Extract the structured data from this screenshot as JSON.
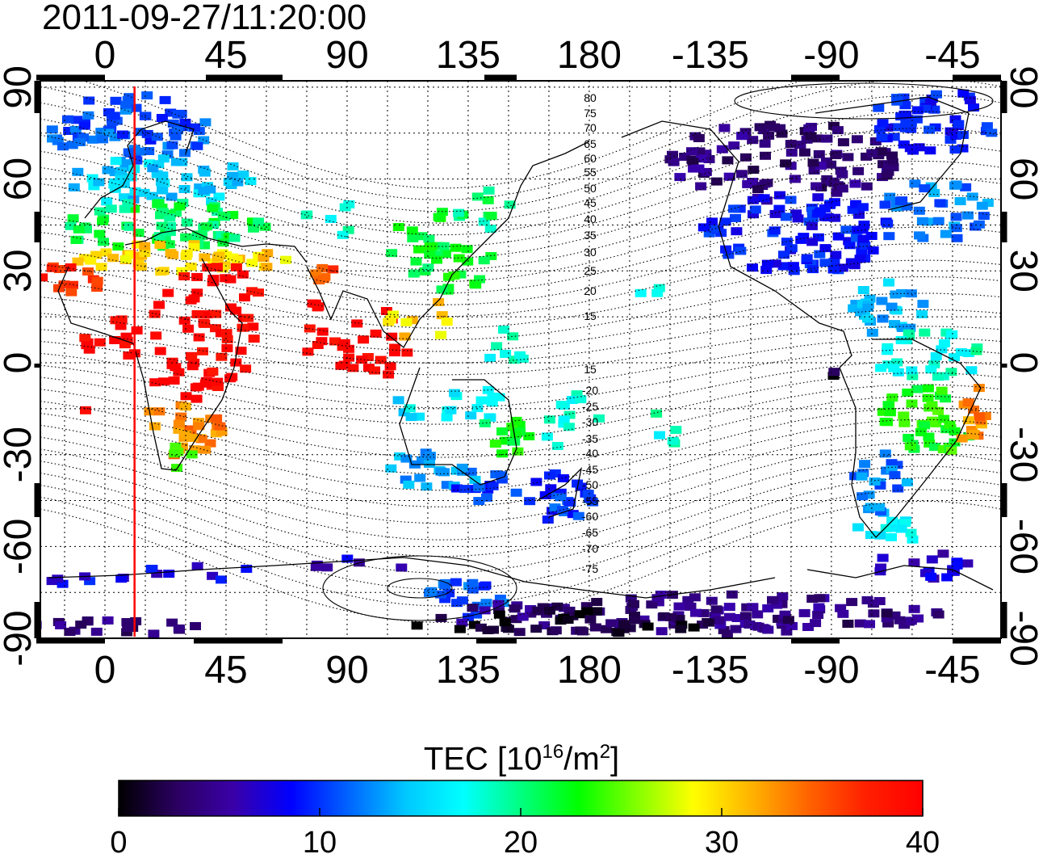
{
  "timestamp": "2011-09-27/11:20:00",
  "lon_ticks": [
    "0",
    "45",
    "90",
    "135",
    "180",
    "-135",
    "-90",
    "-45"
  ],
  "lat_ticks": [
    "90",
    "60",
    "30",
    "0",
    "-30",
    "-60",
    "-90"
  ],
  "contour_labels": [
    "80",
    "75",
    "70",
    "65",
    "60",
    "55",
    "50",
    "45",
    "40",
    "35",
    "30",
    "25",
    "20",
    "15",
    "15",
    "-20",
    "-25",
    "-30",
    "-35",
    "-40",
    "-45",
    "-50",
    "-55",
    "-60",
    "-65",
    "-70",
    "-75"
  ],
  "colorbar": {
    "title_main": "TEC  [10",
    "title_exp1": "16",
    "title_mid": "/m",
    "title_exp2": "2",
    "title_end": "]",
    "tick_labels": [
      "0",
      "10",
      "20",
      "30",
      "40"
    ],
    "min": 0,
    "max": 40,
    "colors": [
      "#000000",
      "#2a0060",
      "#3a00a8",
      "#0000ff",
      "#0064ff",
      "#00c8ff",
      "#00ffff",
      "#00ff80",
      "#00ff00",
      "#80ff00",
      "#ffff00",
      "#ffb400",
      "#ff6400",
      "#ff2000",
      "#ff0000"
    ]
  },
  "marker_longitude": 11
}
